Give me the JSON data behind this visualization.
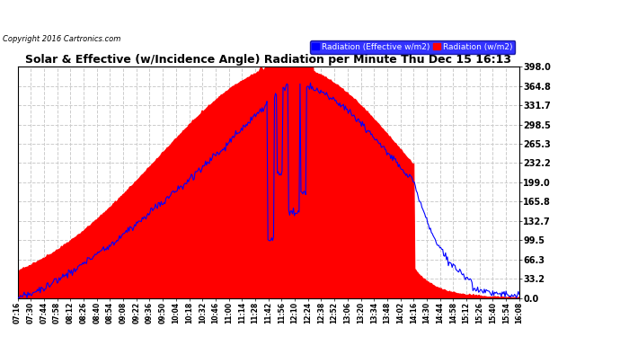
{
  "title": "Solar & Effective (w/Incidence Angle) Radiation per Minute Thu Dec 15 16:13",
  "copyright": "Copyright 2016 Cartronics.com",
  "legend_blue": "Radiation (Effective w/m2)",
  "legend_red": "Radiation (w/m2)",
  "background_color": "#ffffff",
  "plot_bg_color": "#ffffff",
  "grid_color": "#cccccc",
  "y_ticks": [
    0.0,
    33.2,
    66.3,
    99.5,
    132.7,
    165.8,
    199.0,
    232.2,
    265.3,
    298.5,
    331.7,
    364.8,
    398.0
  ],
  "y_max": 398.0,
  "y_min": 0.0,
  "x_labels": [
    "07:16",
    "07:30",
    "07:44",
    "07:58",
    "08:12",
    "08:26",
    "08:40",
    "08:54",
    "09:08",
    "09:22",
    "09:36",
    "09:50",
    "10:04",
    "10:18",
    "10:32",
    "10:46",
    "11:00",
    "11:14",
    "11:28",
    "11:42",
    "11:56",
    "12:10",
    "12:24",
    "12:38",
    "12:52",
    "13:06",
    "13:20",
    "13:34",
    "13:48",
    "14:02",
    "14:16",
    "14:30",
    "14:44",
    "14:58",
    "15:12",
    "15:26",
    "15:40",
    "15:54",
    "16:08"
  ],
  "fill_color": "#ff0000",
  "line_color": "#0000ff"
}
